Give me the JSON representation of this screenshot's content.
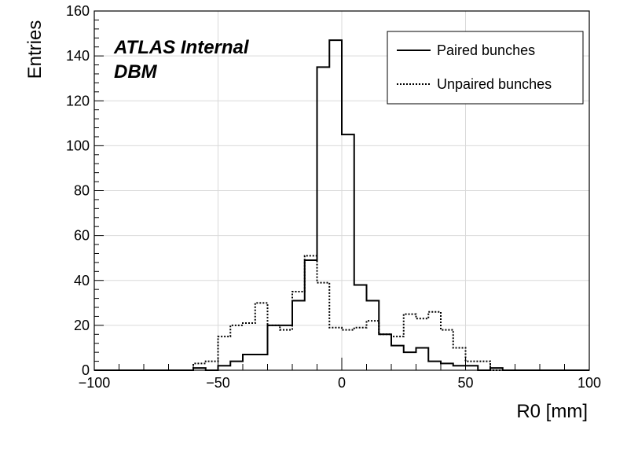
{
  "chart_data": {
    "type": "histogram",
    "xlabel": "R0 [mm]",
    "ylabel": "Entries",
    "xlim": [
      -100,
      100
    ],
    "ylim": [
      0,
      160
    ],
    "grid": true,
    "legend_position": "top-right",
    "x_ticks": [
      -100,
      -50,
      0,
      50,
      100
    ],
    "x_tick_labels": [
      "−100",
      "−50",
      "0",
      "50",
      "100"
    ],
    "y_ticks": [
      0,
      20,
      40,
      60,
      80,
      100,
      120,
      140,
      160
    ],
    "y_tick_labels": [
      "0",
      "20",
      "40",
      "60",
      "80",
      "100",
      "120",
      "140",
      "160"
    ],
    "annotations": [
      "ATLAS Internal",
      "DBM"
    ],
    "bin_edges": [
      -100,
      -95,
      -90,
      -85,
      -80,
      -75,
      -70,
      -65,
      -60,
      -55,
      -50,
      -45,
      -40,
      -35,
      -30,
      -25,
      -20,
      -15,
      -10,
      -5,
      0,
      5,
      10,
      15,
      20,
      25,
      30,
      35,
      40,
      45,
      50,
      55,
      60,
      65,
      70,
      75,
      80,
      85,
      90,
      95,
      100
    ],
    "series": [
      {
        "name": "Paired bunches",
        "style": "solid",
        "color": "#000000",
        "values": [
          0,
          0,
          0,
          0,
          0,
          0,
          0,
          0,
          1,
          0,
          2,
          4,
          7,
          7,
          20,
          20,
          31,
          49,
          135,
          147,
          105,
          38,
          31,
          16,
          11,
          8,
          10,
          4,
          3,
          2,
          2,
          0,
          1,
          0,
          0,
          0,
          0,
          0,
          0,
          0
        ]
      },
      {
        "name": "Unpaired bunches",
        "style": "dotted",
        "color": "#000000",
        "values": [
          0,
          0,
          0,
          0,
          0,
          0,
          0,
          0,
          3,
          4,
          15,
          20,
          21,
          30,
          20,
          18,
          35,
          51,
          39,
          19,
          18,
          19,
          22,
          16,
          15,
          25,
          23,
          26,
          18,
          10,
          4,
          4,
          0,
          0,
          0,
          0,
          0,
          0,
          0,
          0
        ]
      }
    ]
  }
}
